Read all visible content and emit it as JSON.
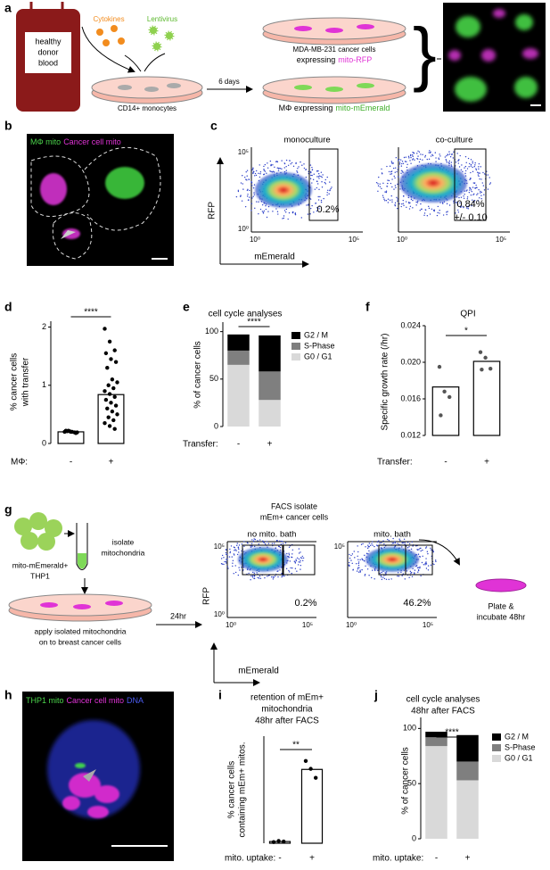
{
  "figure": {
    "a": {
      "label": "a",
      "blood": [
        "healthy",
        "donor",
        "blood"
      ],
      "cytokines": "Cytokines",
      "lentivirus": "Lentivirus",
      "monocytes": "CD14+ monocytes",
      "days": "6 days",
      "cancer_cells": "MDA-MB-231 cancer cells",
      "expressing": "expressing",
      "mito_rfp": "mito-RFP",
      "macrophage_expressing": "MΦ expressing",
      "mito_memerald": "mito-mEmerald"
    },
    "b": {
      "label": "b",
      "mphi_mito": "MΦ mito",
      "cancer_mito": "Cancer cell mito"
    },
    "c": {
      "label": "c",
      "ylabel": "RFP",
      "xlabel": "mEmerald",
      "plots": [
        {
          "title": "monoculture",
          "yticks": [
            "10⁵",
            "10⁰"
          ],
          "xticks": [
            "10⁰",
            "10⁵"
          ],
          "gate": [
            "0.2%"
          ]
        },
        {
          "title": "co-culture",
          "xticks": [
            "10⁰",
            "10⁵"
          ],
          "gate": [
            "0.84%",
            "+/- 0.10"
          ]
        }
      ]
    },
    "d": {
      "label": "d"
    },
    "e": {
      "label": "e"
    },
    "f": {
      "label": "f"
    },
    "g": {
      "label": "g",
      "thp1": [
        "mito-mEmerald+",
        "THP1"
      ],
      "isolate": [
        "isolate",
        "mitochondria"
      ],
      "apply": [
        "apply isolated mitochondria",
        "on to breast cancer cells"
      ],
      "time": "24hr",
      "facs": [
        "FACS isolate",
        "mEm+ cancer cells"
      ],
      "ylabel": "RFP",
      "xlabel": "mEmerald",
      "plots": [
        {
          "title": "no mito. bath",
          "yticks": [
            "10⁵",
            "10⁰"
          ],
          "xticks": [
            "10⁰",
            "10⁵"
          ],
          "gate": [
            "0.2%"
          ]
        },
        {
          "title": "mito. bath",
          "yticks": [
            "10⁵"
          ],
          "xticks": [
            "10⁰",
            "10⁵"
          ],
          "gate": [
            "46.2%"
          ]
        }
      ],
      "plate": [
        "Plate &",
        "incubate 48hr"
      ]
    },
    "h": {
      "label": "h",
      "thp1_mito": "THP1 mito",
      "cancer_mito": "Cancer cell mito",
      "dna": "DNA"
    },
    "i": {
      "label": "i"
    },
    "j": {
      "label": "j"
    }
  },
  "chart_data": [
    {
      "type": "bar",
      "ylabel": [
        "% cancer cells",
        "with transfer"
      ],
      "xlabel": "MΦ:",
      "categories": [
        "-",
        "+"
      ],
      "values": [
        0.2,
        0.84
      ],
      "color": "#ffffff",
      "point_color": "#000000",
      "points": [
        [
          0.2,
          0.21,
          0.19,
          0.22,
          0.2,
          0.18,
          0.21,
          0.2,
          0.19,
          0.22
        ],
        [
          1.97,
          1.75,
          1.6,
          1.55,
          1.45,
          1.4,
          1.3,
          1.1,
          1.05,
          1.0,
          0.95,
          0.9,
          0.85,
          0.8,
          0.75,
          0.7,
          0.65,
          0.6,
          0.55,
          0.5,
          0.45,
          0.4,
          0.35,
          0.3,
          0.25
        ]
      ],
      "ylim": [
        0,
        2.1
      ],
      "yticks": [
        0,
        1,
        2
      ],
      "significance": "****"
    },
    {
      "type": "stacked_bar",
      "title": "cell cycle analyses",
      "ylabel": "% of cancer cells",
      "xlabel": "Transfer:",
      "categories": [
        "-",
        "+"
      ],
      "series": [
        {
          "name": "G0 / G1",
          "color": "#d9d9d9",
          "values": [
            65,
            28
          ]
        },
        {
          "name": "S-Phase",
          "color": "#7f7f7f",
          "values": [
            15,
            30
          ]
        },
        {
          "name": "G2 / M",
          "color": "#000000",
          "values": [
            17,
            38
          ]
        }
      ],
      "ylim": [
        0,
        110
      ],
      "yticks": [
        0,
        50,
        100
      ],
      "significance": "****"
    },
    {
      "type": "bar",
      "title": "QPI",
      "ylabel": "Specific growth rate (/hr)",
      "xlabel": "Transfer:",
      "categories": [
        "-",
        "+"
      ],
      "values": [
        0.0173,
        0.0201
      ],
      "color": "#ffffff",
      "point_color": "#555555",
      "points": [
        [
          0.0195,
          0.0168,
          0.0162,
          0.0142
        ],
        [
          0.0211,
          0.0205,
          0.0193,
          0.0192
        ]
      ],
      "ylim": [
        0.012,
        0.024
      ],
      "yticks": [
        0.012,
        0.016,
        {
          "value": 0.02,
          "label": "0.020"
        },
        0.024
      ],
      "significance": "*"
    },
    {
      "type": "bar",
      "title": [
        "retention of mEm+",
        "mitochondria",
        "48hr after FACS"
      ],
      "ylabel": [
        "% cancer cells",
        "containing mEm+ mitos."
      ],
      "xlabel": "mito. uptake:",
      "categories": [
        "-",
        "+"
      ],
      "values": [
        0.3,
        13.1
      ],
      "color": "#ffffff",
      "point_color": "#000000",
      "points": [
        [
          0.2,
          0.4,
          0.3
        ],
        [
          14.6,
          13.2,
          11.6
        ]
      ],
      "ylim": [
        0,
        19
      ],
      "significance": "**"
    },
    {
      "type": "stacked_bar",
      "title": [
        "cell cycle analyses",
        "48hr after FACS"
      ],
      "ylabel": "% of cancer cells",
      "xlabel": "mito. uptake:",
      "categories": [
        "-",
        "+"
      ],
      "series": [
        {
          "name": "G0 / G1",
          "color": "#d9d9d9",
          "values": [
            84,
            53
          ]
        },
        {
          "name": "S-Phase",
          "color": "#7f7f7f",
          "values": [
            8,
            17
          ]
        },
        {
          "name": "G2 / M",
          "color": "#000000",
          "values": [
            5,
            24
          ]
        }
      ],
      "ylim": [
        0,
        110
      ],
      "yticks": [
        0,
        50,
        100
      ],
      "significance": "****"
    }
  ]
}
